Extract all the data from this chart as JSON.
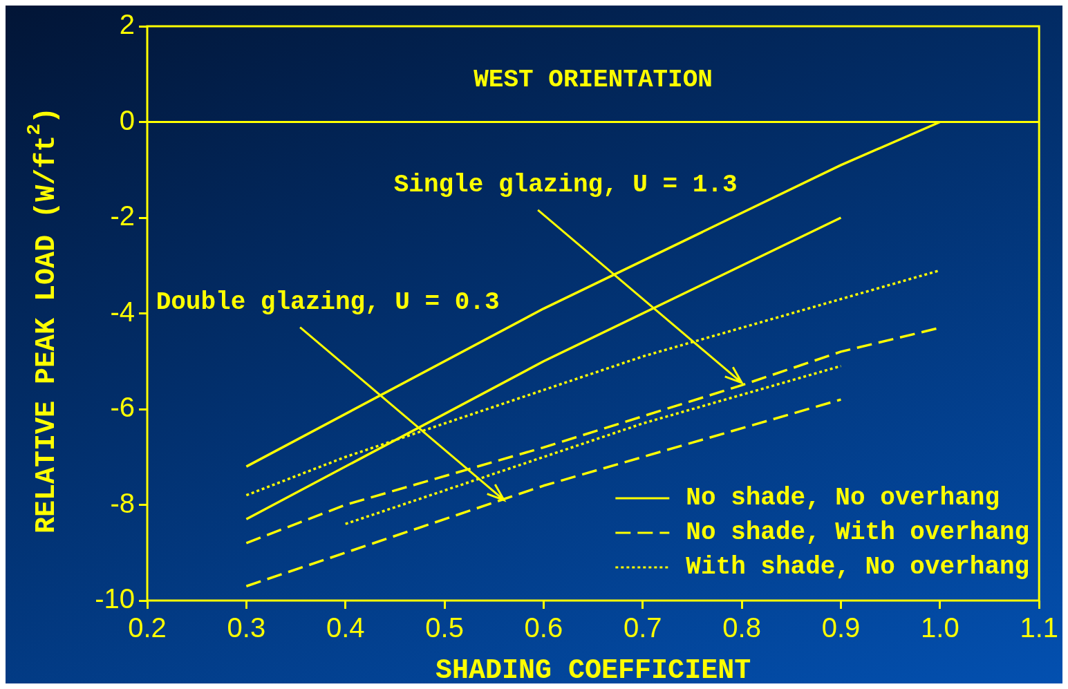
{
  "chart_data": {
    "type": "line",
    "xlabel": "SHADING COEFFICIENT",
    "ylabel": "RELATIVE PEAK LOAD (W/ft$^{2}$)",
    "xlim": [
      0.2,
      1.1
    ],
    "xticks": [
      0.2,
      0.3,
      0.4,
      0.5,
      0.6,
      0.7,
      0.8,
      0.9,
      {
        "value": 1,
        "label": "1.0"
      },
      1.1
    ],
    "ylim": [
      -10,
      2
    ],
    "yticks": [
      -10,
      -8,
      -6,
      -4,
      -2,
      0,
      2
    ],
    "grid": false,
    "legend": "bottom right",
    "marker": "none",
    "series": [
      {
        "name": "No shade, No overhang",
        "line_style": "solid",
        "color": "#ffff00",
        "x": [
          0.3,
          0.6,
          0.9,
          1.0
        ],
        "values": [
          -7.2,
          -3.9,
          -0.9,
          0
        ]
      },
      {
        "line_style": "solid",
        "color": "#ffff00",
        "x": [
          0.3,
          0.6,
          0.9
        ],
        "values": [
          -8.3,
          -5.0,
          -2.0
        ]
      },
      {
        "name": "No shade, With overhang",
        "line_style": "dashed",
        "color": "#ffff00",
        "x": [
          0.3,
          0.4,
          0.6,
          0.8,
          0.9,
          1.0
        ],
        "values": [
          -8.8,
          -8.0,
          -6.8,
          -5.5,
          -4.8,
          -4.3
        ]
      },
      {
        "line_style": "dashed",
        "color": "#ffff00",
        "x": [
          0.3,
          0.6,
          0.9
        ],
        "values": [
          -9.7,
          -7.6,
          -5.8
        ]
      },
      {
        "name": "With shade, No overhang",
        "line_style": "dotted",
        "color": "#ffff00",
        "x": [
          0.3,
          0.4,
          0.5,
          0.6,
          0.7,
          0.8,
          0.9,
          1.0
        ],
        "values": [
          -7.8,
          -7.0,
          -6.3,
          -5.6,
          -4.9,
          -4.3,
          -3.7,
          -3.1
        ]
      },
      {
        "line_style": "dotted",
        "color": "#ffff00",
        "x": [
          0.4,
          0.5,
          0.6,
          0.7,
          0.8,
          0.9
        ],
        "values": [
          -8.4,
          -7.7,
          -7.0,
          -6.3,
          -5.7,
          -5.1
        ]
      }
    ],
    "ref_lines": [
      {
        "axis": "y",
        "value": 0,
        "color": "#ffff00",
        "line_style": "solid"
      }
    ],
    "annotations": [
      "WEST ORIENTATION",
      {
        "text": "Single glazing, U = 1.3",
        "x": 0.8,
        "y": -5.45
      },
      {
        "text": "Double glazing, U = 0.3",
        "x": 0.56,
        "y": -7.9
      }
    ]
  }
}
